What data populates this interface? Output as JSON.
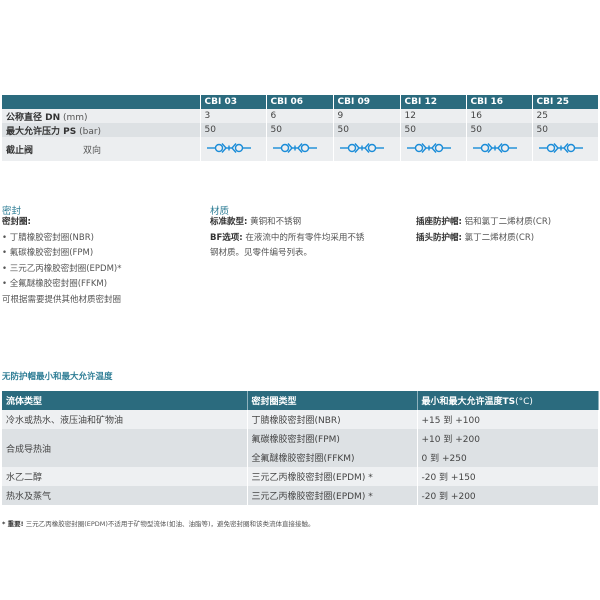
{
  "spec_table": {
    "models": [
      "CBI 03",
      "CBI 06",
      "CBI 09",
      "CBI 12",
      "CBI 16",
      "CBI 25"
    ],
    "rows": [
      {
        "label": "公称直径 DN",
        "unit": "(mm)",
        "values": [
          "3",
          "6",
          "9",
          "12",
          "16",
          "25"
        ]
      },
      {
        "label": "最大允许压力 PS",
        "unit": "(bar)",
        "values": [
          "50",
          "50",
          "50",
          "50",
          "50",
          "50"
        ]
      },
      {
        "label": "截止阀",
        "sub": "双向",
        "icon": "bidirectional-shutoff-valve-icon"
      }
    ],
    "icon_color": "#1a8cd8",
    "header_color": "#2b6b7e"
  },
  "seal": {
    "title": "密封",
    "subtitle": "密封圈:",
    "items": [
      "丁腈橡胶密封圈(NBR)",
      "氟碳橡胶密封圈(FPM)",
      "三元乙丙橡胶密封圈(EPDM)*",
      "全氟醚橡胶密封圈(FFKM)"
    ],
    "note": "可根据需要提供其他材质密封圈"
  },
  "material": {
    "title": "材质",
    "standard_label": "标准款型:",
    "standard_value": "黄铜和不锈钢",
    "bf_label": "BF选项:",
    "bf_value_1": "在液流中的所有零件均采用不锈",
    "bf_value_2": "钢材质。见零件编号列表。",
    "socket_cap_label": "插座防护帽:",
    "socket_cap_value": "铝和氯丁二烯材质(CR)",
    "plug_cap_label": "插头防护帽:",
    "plug_cap_value": "氯丁二烯材质(CR)"
  },
  "temp_table": {
    "title": "无防护帽最小和最大允许温度",
    "headers": [
      "流体类型",
      "密封圈类型",
      "最小和最大允许温度TS"
    ],
    "header_unit": "(°C)",
    "fluids": [
      "冷水或热水、液压油和矿物油",
      "合成导热油",
      "水乙二醇",
      "热水及蒸气"
    ],
    "seals": [
      "丁腈橡胶密封圈(NBR)",
      "氟碳橡胶密封圈(FPM)",
      "全氟醚橡胶密封圈(FFKM)",
      "三元乙丙橡胶密封圈(EPDM) *",
      "三元乙丙橡胶密封圈(EPDM) *"
    ],
    "temps": [
      "+15 到 +100",
      "+10 到 +200",
      "0 到 +250",
      "-20 到 +150",
      "-20 到 +200"
    ]
  },
  "footnote": {
    "mark": "* 重要!",
    "text": "三元乙丙橡胶密封圈(EPDM)不适用于矿物型流体(如油、油脂等)，避免密封圈和该类流体直接接触。"
  }
}
